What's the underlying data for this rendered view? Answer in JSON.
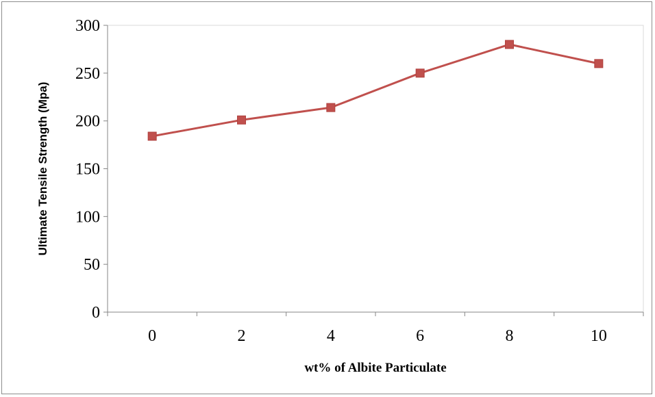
{
  "chart_data": {
    "type": "line",
    "title": "",
    "xlabel": "wt% of Albite Particulate",
    "ylabel": "Ultimate Tensile Strength  (Mpa)",
    "x": [
      0,
      2,
      4,
      6,
      8,
      10
    ],
    "x_tick_labels": [
      "0",
      "2",
      "4",
      "6",
      "8",
      "10"
    ],
    "y_tick_labels": [
      "0",
      "50",
      "100",
      "150",
      "200",
      "250",
      "300"
    ],
    "y_ticks": [
      0,
      50,
      100,
      150,
      200,
      250,
      300
    ],
    "ylim": [
      0,
      300
    ],
    "grid": false,
    "legend": "none",
    "series": [
      {
        "values": [
          184,
          201,
          214,
          250,
          280,
          260
        ],
        "color": "#c0504d",
        "marker": "square"
      }
    ]
  }
}
